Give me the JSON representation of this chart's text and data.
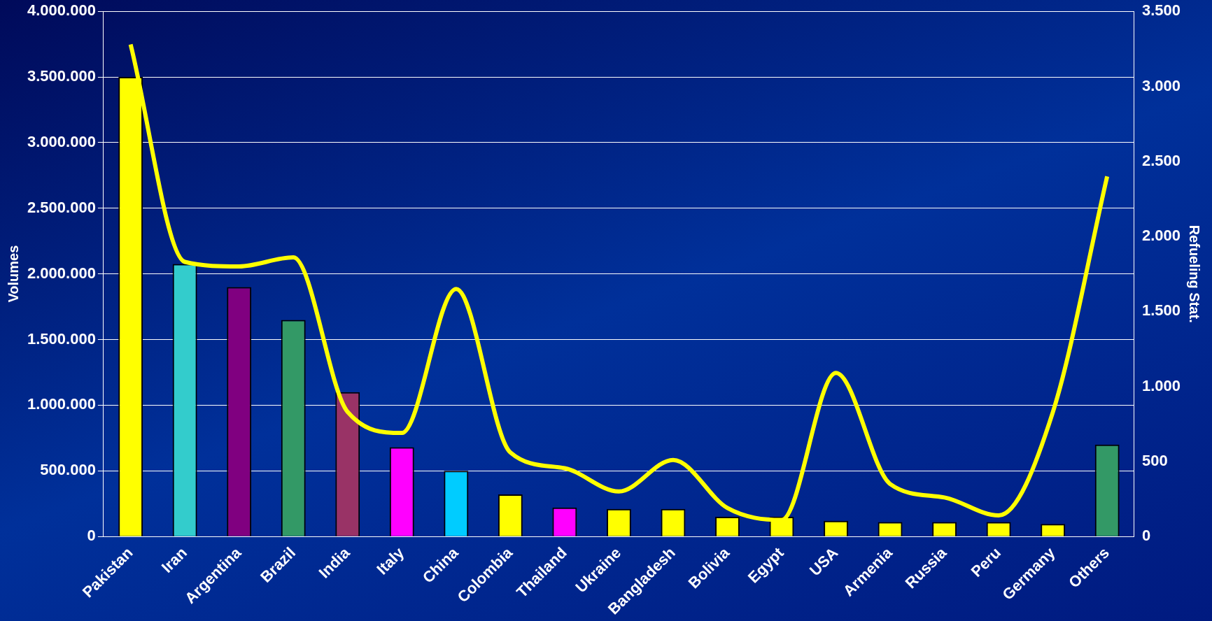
{
  "chart_data": {
    "type": "bar",
    "categories": [
      "Pakistan",
      "Iran",
      "Argentina",
      "Brazil",
      "India",
      "Italy",
      "China",
      "Colombia",
      "Thailand",
      "Ukraine",
      "Bangladesh",
      "Bolivia",
      "Egypt",
      "USA",
      "Armenia",
      "Russia",
      "Peru",
      "Germany",
      "Others"
    ],
    "series": [
      {
        "colors": [
          "#ffff00",
          "#33cccc",
          "#800080",
          "#339966",
          "#993366",
          "#ff00ff",
          "#00ccff",
          "#ffff00",
          "#ff00ff",
          "#ffff00",
          "#ffff00",
          "#ffff00",
          "#ffff00",
          "#ffff00",
          "#ffff00",
          "#ffff00",
          "#ffff00",
          "#ffff00",
          "#339966"
        ],
        "values": [
          3500000,
          2075000,
          1900000,
          1650000,
          1100000,
          680000,
          500000,
          320000,
          220000,
          210000,
          210000,
          150000,
          150000,
          120000,
          110000,
          110000,
          110000,
          95000,
          700000
        ]
      },
      {
        "type": "line",
        "axis": "y2",
        "color": "#ffff00",
        "values": [
          3280,
          1830,
          1800,
          1860,
          830,
          690,
          1650,
          560,
          455,
          300,
          510,
          190,
          110,
          1090,
          350,
          260,
          140,
          830,
          2400
        ]
      }
    ],
    "ylabel": "Volumes",
    "y2label": "Refueling Stat.",
    "ylim": [
      0,
      4000000
    ],
    "yticks": [
      {
        "value": 0,
        "label": "0"
      },
      {
        "value": 500000,
        "label": "500.000"
      },
      {
        "value": 1000000,
        "label": "1.000.000"
      },
      {
        "value": 1500000,
        "label": "1.500.000"
      },
      {
        "value": 2000000,
        "label": "2.000.000"
      },
      {
        "value": 2500000,
        "label": "2.500.000"
      },
      {
        "value": 3000000,
        "label": "3.000.000"
      },
      {
        "value": 3500000,
        "label": "3.500.000"
      },
      {
        "value": 4000000,
        "label": "4.000.000"
      }
    ],
    "y2lim": [
      0,
      3500
    ],
    "y2ticks": [
      {
        "value": 0,
        "label": "0"
      },
      {
        "value": 500,
        "label": "500"
      },
      {
        "value": 1000,
        "label": "1.000"
      },
      {
        "value": 1500,
        "label": "1.500"
      },
      {
        "value": 2000,
        "label": "2.000"
      },
      {
        "value": 2500,
        "label": "2.500"
      },
      {
        "value": 3000,
        "label": "3.000"
      },
      {
        "value": 3500,
        "label": "3.500"
      }
    ],
    "grid": "y",
    "legend": false,
    "marker": "none"
  }
}
